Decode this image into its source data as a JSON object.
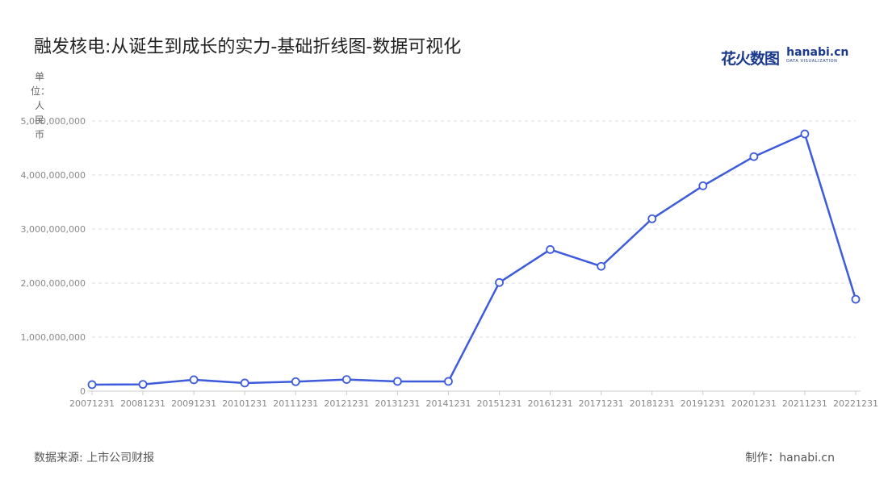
{
  "title": "融发核电:从诞生到成长的实力-基础折线图-数据可视化",
  "unit_label": "单位：人民币",
  "source": "数据来源: 上市公司财报",
  "credit": "制作：hanabi.cn",
  "logo": {
    "cn": "花火数图",
    "en": "hanabi.cn",
    "sub": "DATA VISUALIZATION"
  },
  "colors": {
    "line": "#3d5bdb",
    "grid": "#dddddd",
    "axis": "#cccccc"
  },
  "chart_data": {
    "type": "line",
    "title": "融发核电:从诞生到成长的实力-基础折线图-数据可视化",
    "categories": [
      "20071231",
      "20081231",
      "20091231",
      "20101231",
      "20111231",
      "20121231",
      "20131231",
      "20141231",
      "20151231",
      "20161231",
      "20171231",
      "20181231",
      "20191231",
      "20201231",
      "20211231",
      "20221231"
    ],
    "series": [
      {
        "values": [
          120000000,
          125000000,
          210000000,
          150000000,
          175000000,
          215000000,
          180000000,
          180000000,
          2010000000,
          2620000000,
          2310000000,
          3190000000,
          3800000000,
          4340000000,
          4760000000,
          1700000000
        ]
      }
    ],
    "ylim": [
      0,
      5000000000
    ],
    "yticks": [
      0,
      1000000000,
      2000000000,
      3000000000,
      4000000000,
      5000000000
    ],
    "ytick_labels": [
      "0",
      "1,000,000,000",
      "2,000,000,000",
      "3,000,000,000",
      "4,000,000,000",
      "5,000,000,000"
    ],
    "ylabel": "单位：人民币",
    "grid": true,
    "legend": "none"
  }
}
